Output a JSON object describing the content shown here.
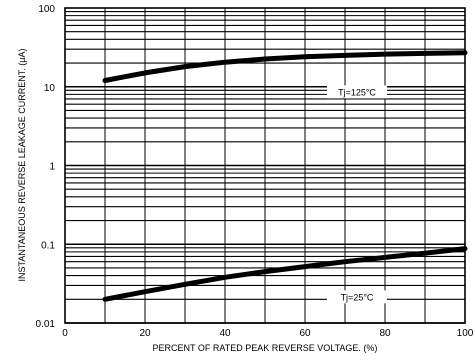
{
  "chart_data": {
    "type": "line",
    "title": "",
    "xlabel": "PERCENT OF RATED PEAK REVERSE VOLTAGE. (%)",
    "ylabel": "INSTANTANEOUS REVERSE LEAKAGE CURRENT. (μA)",
    "xlim": [
      0,
      100
    ],
    "ylim": [
      0.01,
      100
    ],
    "yscale": "log",
    "grid": true,
    "x_ticks": [
      "0",
      "20",
      "40",
      "60",
      "80",
      "100"
    ],
    "y_ticks": [
      "0.01",
      "0.1",
      "1",
      "10",
      "100"
    ],
    "series": [
      {
        "name": "Tj=125°C",
        "x": [
          10,
          20,
          30,
          40,
          50,
          60,
          70,
          80,
          90,
          100
        ],
        "y": [
          12,
          15,
          18,
          20.5,
          22.5,
          24,
          25,
          26,
          26.5,
          27
        ]
      },
      {
        "name": "Tj=25°C",
        "x": [
          10,
          20,
          30,
          40,
          50,
          60,
          70,
          80,
          90,
          100
        ],
        "y": [
          0.02,
          0.025,
          0.031,
          0.038,
          0.045,
          0.052,
          0.06,
          0.068,
          0.077,
          0.088
        ]
      }
    ],
    "annotations": [
      {
        "text": "Tj=125°C",
        "x": 73,
        "y": 8
      },
      {
        "text": "Tj=25°C",
        "x": 73,
        "y": 0.02
      }
    ]
  }
}
